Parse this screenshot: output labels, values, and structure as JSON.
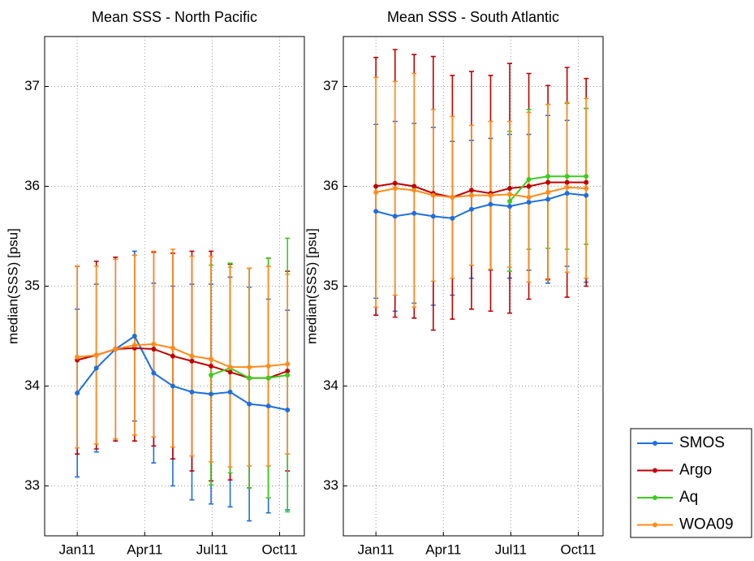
{
  "chart_data": [
    {
      "type": "line",
      "title": "Mean SSS - North Pacific",
      "y_label": "median(SSS) [psu]",
      "x": [
        1,
        1.85,
        2.7,
        3.55,
        4.4,
        5.25,
        6.1,
        6.95,
        7.8,
        8.65,
        9.5,
        10.35
      ],
      "xlim": [
        -0.45,
        11.1
      ],
      "xticks": [
        {
          "value": 1,
          "label": "Jan11"
        },
        {
          "value": 4,
          "label": "Apr11"
        },
        {
          "value": 7,
          "label": "Jul11"
        },
        {
          "value": 10,
          "label": "Oct11"
        }
      ],
      "ylim": [
        32.5,
        37.5
      ],
      "yticks": [
        33,
        34,
        35,
        36,
        37
      ],
      "grid": true,
      "series": [
        {
          "name": "SMOS",
          "color": "#1f6fdc",
          "values": [
            33.93,
            34.18,
            34.37,
            34.5,
            34.13,
            34.0,
            33.94,
            33.92,
            33.94,
            33.82,
            33.8,
            33.76
          ],
          "errors": [
            0.84,
            0.84,
            0.9,
            0.85,
            0.9,
            1.0,
            1.08,
            1.1,
            1.15,
            1.17,
            1.07,
            1.0
          ]
        },
        {
          "name": "Argo",
          "color": "#c00000",
          "values": [
            34.26,
            34.31,
            34.37,
            34.38,
            34.37,
            34.3,
            34.25,
            34.2,
            34.14,
            34.08,
            34.08,
            34.15
          ],
          "errors": [
            0.94,
            0.94,
            0.92,
            0.93,
            0.97,
            1.03,
            1.1,
            1.15,
            1.08,
            1.1,
            1.2,
            1.0
          ]
        },
        {
          "name": "Aq",
          "color": "#3ccc1e",
          "values": [
            null,
            null,
            null,
            null,
            null,
            null,
            null,
            34.11,
            34.18,
            34.08,
            34.08,
            34.11
          ],
          "errors": [
            null,
            null,
            null,
            null,
            null,
            null,
            null,
            1.1,
            1.05,
            1.1,
            1.2,
            1.37
          ]
        },
        {
          "name": "WOA09",
          "color": "#ff8c1a",
          "values": [
            34.29,
            34.31,
            34.37,
            34.41,
            34.42,
            34.38,
            34.3,
            34.27,
            34.19,
            34.19,
            34.2,
            34.22
          ],
          "errors": [
            0.91,
            0.89,
            0.9,
            0.9,
            0.93,
            0.99,
            1.0,
            1.03,
            1.0,
            0.99,
            1.0,
            0.9
          ]
        }
      ]
    },
    {
      "type": "line",
      "title": "Mean SSS - South Atlantic",
      "y_label": "median(SSS) [psu]",
      "x": [
        1,
        1.85,
        2.7,
        3.55,
        4.4,
        5.25,
        6.1,
        6.95,
        7.8,
        8.65,
        9.5,
        10.35
      ],
      "xlim": [
        -0.45,
        11.1
      ],
      "xticks": [
        {
          "value": 1,
          "label": "Jan11"
        },
        {
          "value": 4,
          "label": "Apr11"
        },
        {
          "value": 7,
          "label": "Jul11"
        },
        {
          "value": 10,
          "label": "Oct11"
        }
      ],
      "ylim": [
        32.5,
        37.5
      ],
      "yticks": [
        33,
        34,
        35,
        36,
        37
      ],
      "grid": true,
      "legend": "outside-lower-right",
      "series": [
        {
          "name": "SMOS",
          "color": "#1f6fdc",
          "values": [
            35.75,
            35.7,
            35.73,
            35.7,
            35.68,
            35.77,
            35.82,
            35.8,
            35.84,
            35.87,
            35.93,
            35.91
          ],
          "errors": [
            0.87,
            0.95,
            0.9,
            0.89,
            0.77,
            0.69,
            0.66,
            0.72,
            0.68,
            0.84,
            0.73,
            0.87
          ]
        },
        {
          "name": "Argo",
          "color": "#c00000",
          "values": [
            36.0,
            36.03,
            36.0,
            35.93,
            35.89,
            35.96,
            35.93,
            35.98,
            36.0,
            36.04,
            36.04,
            36.04
          ],
          "errors": [
            1.29,
            1.34,
            1.32,
            1.37,
            1.22,
            1.19,
            1.18,
            1.25,
            1.13,
            0.97,
            1.15,
            1.04
          ]
        },
        {
          "name": "Aq",
          "color": "#3ccc1e",
          "values": [
            null,
            null,
            null,
            null,
            null,
            null,
            null,
            35.85,
            36.07,
            36.1,
            36.1,
            36.1
          ],
          "errors": [
            null,
            null,
            null,
            null,
            null,
            null,
            null,
            0.7,
            0.7,
            0.72,
            0.73,
            0.68
          ]
        },
        {
          "name": "WOA09",
          "color": "#ff8c1a",
          "values": [
            35.94,
            35.98,
            35.96,
            35.91,
            35.89,
            35.91,
            35.91,
            35.92,
            35.89,
            35.94,
            35.99,
            35.98
          ],
          "errors": [
            1.15,
            1.07,
            1.17,
            0.86,
            0.81,
            0.7,
            0.74,
            0.73,
            0.85,
            0.88,
            0.85,
            0.9
          ]
        }
      ]
    }
  ]
}
